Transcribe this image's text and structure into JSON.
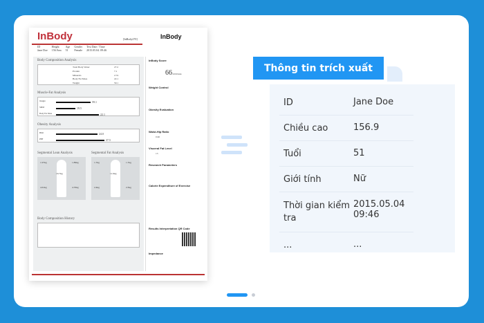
{
  "document": {
    "logo": "InBody",
    "model": "[InBody270]",
    "logo_right": "InBody",
    "info": [
      {
        "label": "ID",
        "value": "Jane Doe"
      },
      {
        "label": "Height",
        "value": "156.9cm"
      },
      {
        "label": "Age",
        "value": "51"
      },
      {
        "label": "Gender",
        "value": "Female"
      },
      {
        "label": "Test Date / Time",
        "value": "2015.05.04. 09:46"
      }
    ],
    "sections": {
      "bca": "Body Composition Analysis",
      "mfa": "Muscle-Fat Analysis",
      "oa": "Obesity Analysis",
      "sla": "Segmental Lean Analysis",
      "sfa": "Segmental Fat Analysis",
      "bch": "Body Composition History"
    },
    "bca_rows": [
      {
        "label": "Total Body Water",
        "value": "27.2"
      },
      {
        "label": "Protein",
        "value": "7.1"
      },
      {
        "label": "Minerals",
        "value": "2.74"
      },
      {
        "label": "Body Fat Mass",
        "value": "22.1"
      },
      {
        "label": "Weight",
        "value": "59.1"
      }
    ],
    "mfa_rows": [
      {
        "label": "Weight",
        "value": "59.1"
      },
      {
        "label": "SMM",
        "value": "19.5"
      },
      {
        "label": "Body Fat Mass",
        "value": "22.1"
      }
    ],
    "oa_rows": [
      {
        "label": "BMI",
        "value": "24.0"
      },
      {
        "label": "PBF",
        "value": "37.5"
      }
    ],
    "lean": [
      "1.97kg",
      "1.89kg",
      "16.7kg",
      "4.61kg",
      "4.70kg"
    ],
    "fat": [
      "1.7kg",
      "1.7kg",
      "11.9kg",
      "2.4kg",
      "2.5kg"
    ],
    "sidebar": {
      "score_title": "InBody Score",
      "score": "66",
      "score_unit": "/100 Points",
      "weight_control": "Weight Control",
      "obesity_eval": "Obesity Evaluation",
      "whr": "Waist-Hip Ratio",
      "whr_value": "0.90",
      "vfl": "Visceral Fat Level",
      "vfl_value": "13",
      "research": "Research Parameters",
      "calorie": "Calorie Expenditure of Exercise",
      "qr": "Results Interpretation QR Code",
      "impedance": "Impedance"
    }
  },
  "extracted": {
    "title": "Thông tin trích xuất",
    "rows": [
      {
        "key": "ID",
        "value": "Jane Doe"
      },
      {
        "key": "Chiều cao",
        "value": "156.9"
      },
      {
        "key": "Tuổi",
        "value": "51"
      },
      {
        "key": "Giới tính",
        "value": "Nữ"
      },
      {
        "key": "Thời gian kiểm tra",
        "value": "2015.05.04 09:46"
      },
      {
        "key": "...",
        "value": "..."
      }
    ]
  },
  "pagination": {
    "current": 1,
    "total": 2
  },
  "colors": {
    "background": "#1e8fd8",
    "accent": "#2196f3",
    "panel": "#f1f6fc",
    "brand_red": "#c0303a"
  }
}
